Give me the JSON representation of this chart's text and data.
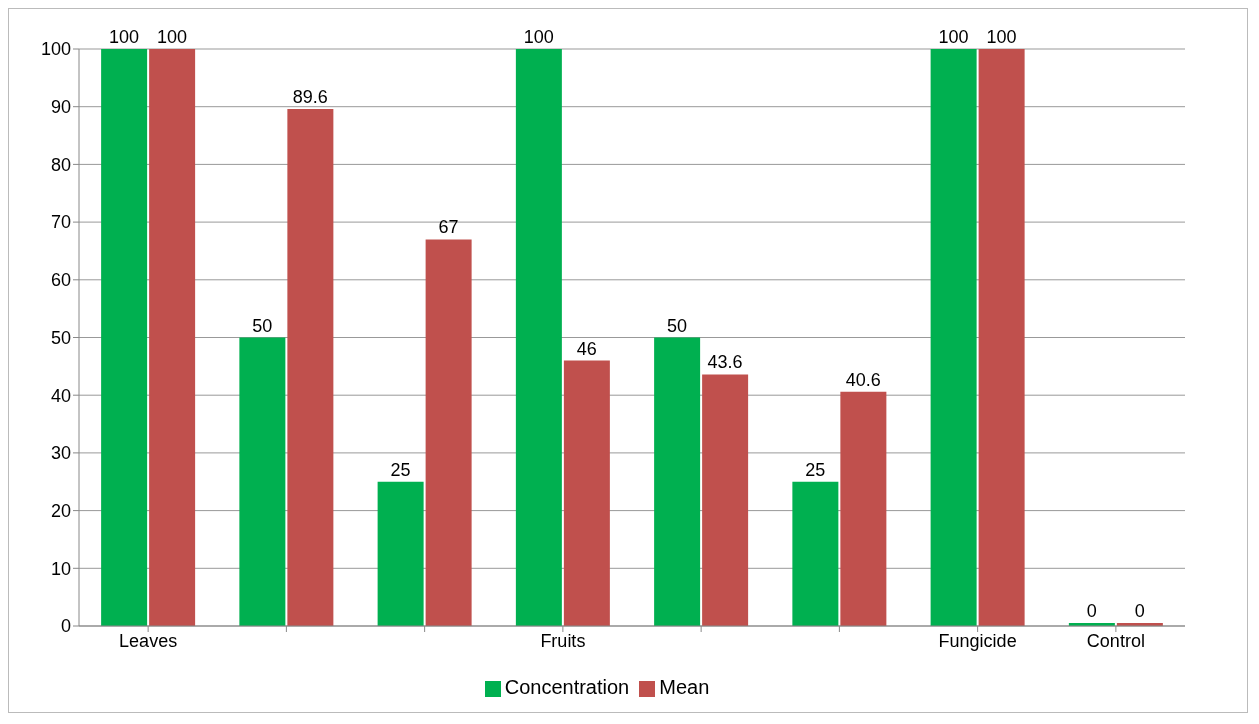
{
  "chart_data": {
    "type": "bar",
    "categories": [
      "Leaves",
      null,
      null,
      "Fruits",
      null,
      null,
      "Fungicide",
      "Control"
    ],
    "series": [
      {
        "name": "Concentration",
        "color": "#00b050",
        "values": [
          100,
          50,
          25,
          100,
          50,
          25,
          100,
          0
        ]
      },
      {
        "name": "Mean",
        "color": "#c0504d",
        "values": [
          100,
          89.6,
          67,
          46,
          43.6,
          40.6,
          100,
          0
        ]
      }
    ],
    "ylim": [
      0,
      100
    ],
    "yticks": [
      0,
      10,
      20,
      30,
      40,
      50,
      60,
      70,
      80,
      90,
      100
    ],
    "grid": "y",
    "legend": "bottom",
    "data_labels": true
  }
}
